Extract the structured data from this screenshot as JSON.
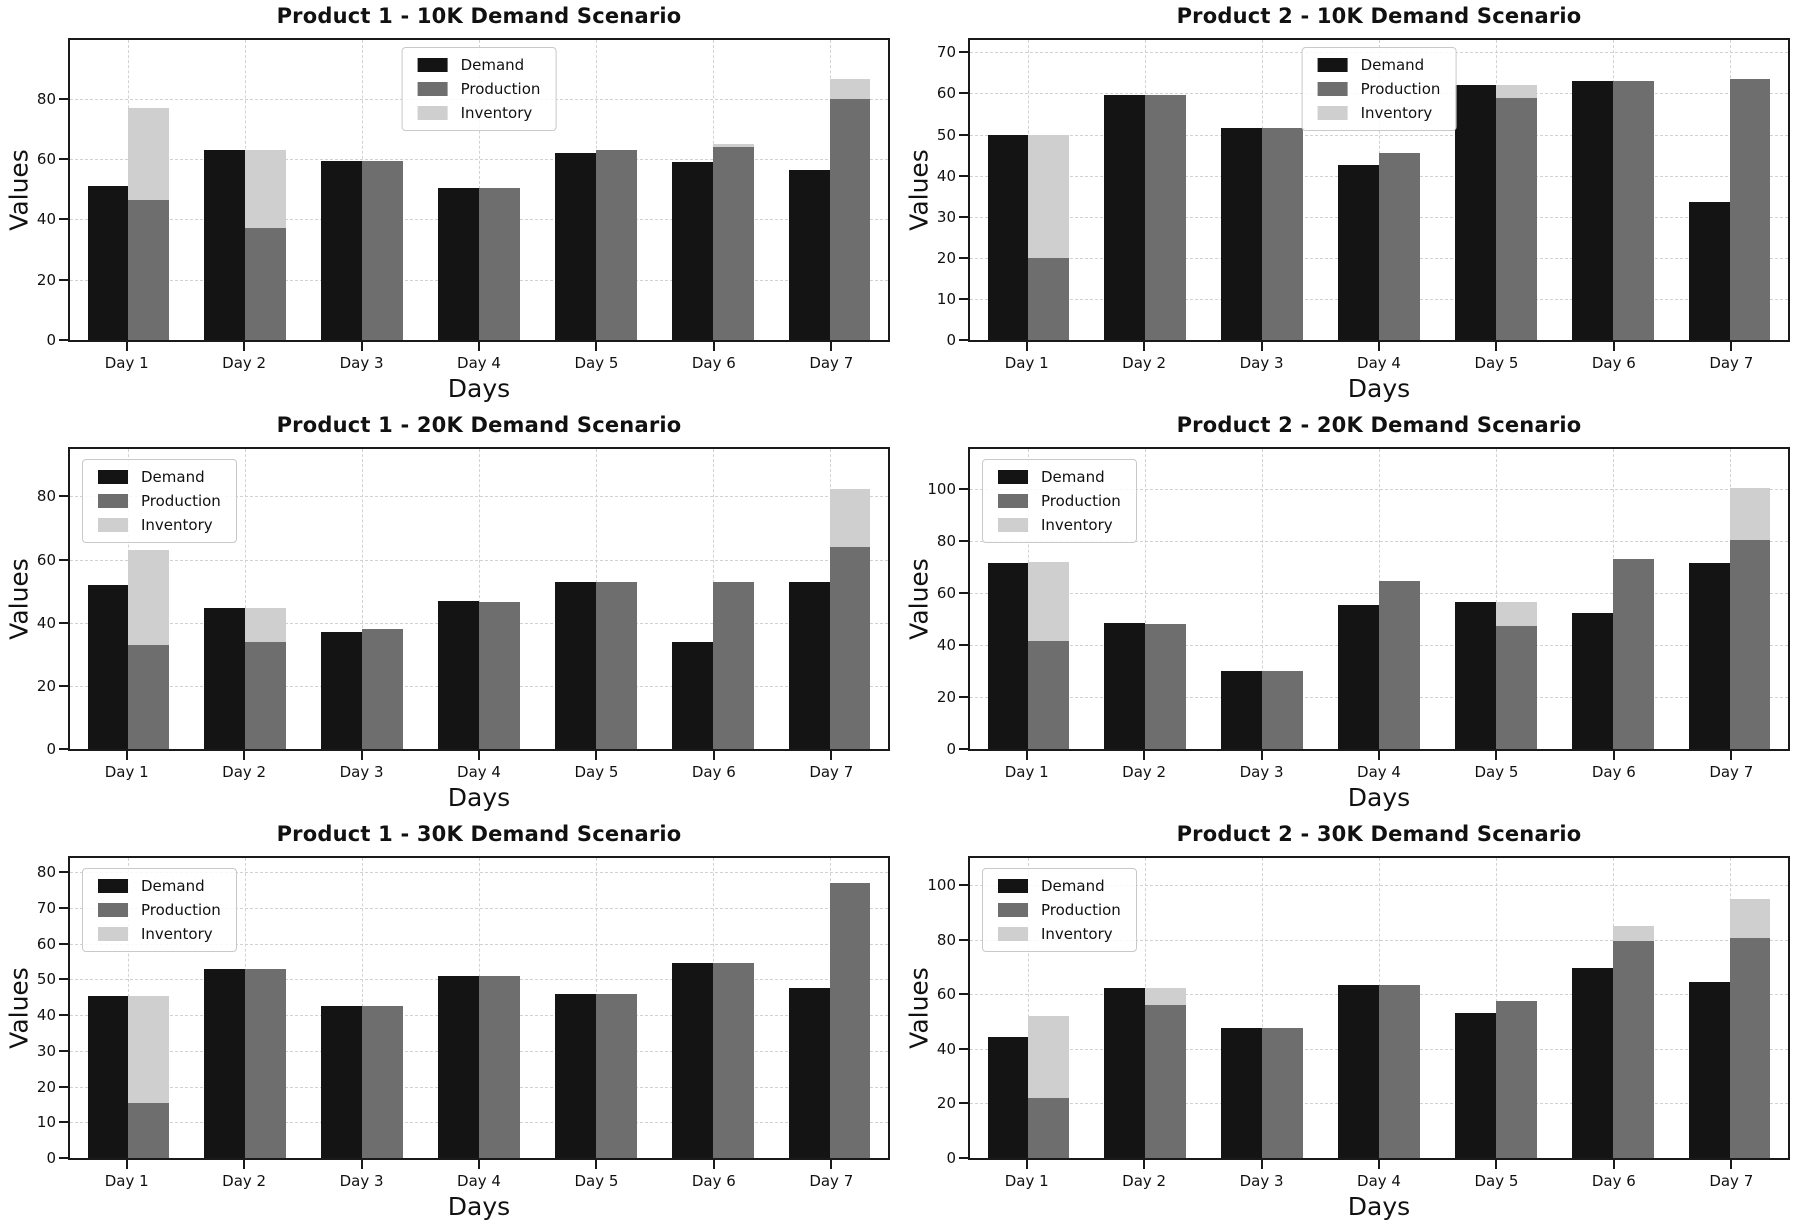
{
  "figure": {
    "background": "#ffffff",
    "grid_on": true,
    "grid_style": "dashed"
  },
  "colors": {
    "demand": "#141414",
    "production": "#6e6e6e",
    "inventory": "#cfcfcf",
    "grid": "#d2d2d2",
    "axis": "#1a1a1a",
    "legend_border": "#c9c9c9"
  },
  "axis_labels": {
    "x": "Days",
    "y": "Values"
  },
  "legend_labels": [
    "Demand",
    "Production",
    "Inventory"
  ],
  "chart_data": [
    {
      "type": "bar",
      "title": "Product 1 - 10K Demand Scenario",
      "xlabel": "Days",
      "ylabel": "Values",
      "categories": [
        "Day 1",
        "Day 2",
        "Day 3",
        "Day 4",
        "Day 5",
        "Day 6",
        "Day 7"
      ],
      "ylim": [
        0,
        99.5
      ],
      "yticks": [
        0,
        20,
        40,
        60,
        80
      ],
      "grid": true,
      "legend_position": "upper-center",
      "series": [
        {
          "name": "Demand",
          "color": "#141414",
          "values": [
            51,
            63,
            59.5,
            50.5,
            62,
            59,
            56.5
          ]
        },
        {
          "name": "Production",
          "color": "#6e6e6e",
          "values": [
            46.5,
            37,
            59.5,
            50.5,
            63,
            64,
            80
          ]
        },
        {
          "name": "Inventory",
          "color": "#cfcfcf",
          "stacked_on": "Production",
          "values": [
            30.5,
            26,
            0,
            0,
            0,
            1,
            6.5
          ]
        }
      ]
    },
    {
      "type": "bar",
      "title": "Product 2 - 10K Demand Scenario",
      "xlabel": "Days",
      "ylabel": "Values",
      "categories": [
        "Day 1",
        "Day 2",
        "Day 3",
        "Day 4",
        "Day 5",
        "Day 6",
        "Day 7"
      ],
      "ylim": [
        0,
        73
      ],
      "yticks": [
        0,
        10,
        20,
        30,
        40,
        50,
        60,
        70
      ],
      "grid": true,
      "legend_position": "upper-center",
      "series": [
        {
          "name": "Demand",
          "color": "#141414",
          "values": [
            50,
            59.5,
            51.5,
            42.5,
            62,
            63,
            33.5
          ]
        },
        {
          "name": "Production",
          "color": "#6e6e6e",
          "values": [
            20,
            59.5,
            51.5,
            45.5,
            59,
            63,
            63.5
          ]
        },
        {
          "name": "Inventory",
          "color": "#cfcfcf",
          "stacked_on": "Production",
          "values": [
            30,
            0,
            0,
            0,
            3,
            0,
            0
          ]
        }
      ]
    },
    {
      "type": "bar",
      "title": "Product 1 - 20K Demand Scenario",
      "xlabel": "Days",
      "ylabel": "Values",
      "categories": [
        "Day 1",
        "Day 2",
        "Day 3",
        "Day 4",
        "Day 5",
        "Day 6",
        "Day 7"
      ],
      "ylim": [
        0,
        95
      ],
      "yticks": [
        0,
        20,
        40,
        60,
        80
      ],
      "grid": true,
      "legend_position": "upper-left",
      "series": [
        {
          "name": "Demand",
          "color": "#141414",
          "values": [
            52,
            44.5,
            37,
            47,
            53,
            34,
            53
          ]
        },
        {
          "name": "Production",
          "color": "#6e6e6e",
          "values": [
            33,
            34,
            38,
            46.5,
            53,
            53,
            64
          ]
        },
        {
          "name": "Inventory",
          "color": "#cfcfcf",
          "stacked_on": "Production",
          "values": [
            30,
            10.5,
            0,
            0,
            0,
            0,
            18.5
          ]
        }
      ]
    },
    {
      "type": "bar",
      "title": "Product 2 - 20K Demand Scenario",
      "xlabel": "Days",
      "ylabel": "Values",
      "categories": [
        "Day 1",
        "Day 2",
        "Day 3",
        "Day 4",
        "Day 5",
        "Day 6",
        "Day 7"
      ],
      "ylim": [
        0,
        115.5
      ],
      "yticks": [
        0,
        20,
        40,
        60,
        80,
        100
      ],
      "grid": true,
      "legend_position": "upper-left",
      "series": [
        {
          "name": "Demand",
          "color": "#141414",
          "values": [
            71.5,
            48.5,
            30,
            55.5,
            56.5,
            52.5,
            71.5
          ]
        },
        {
          "name": "Production",
          "color": "#6e6e6e",
          "values": [
            41.5,
            48,
            30,
            64.5,
            47.5,
            73,
            80.5
          ]
        },
        {
          "name": "Inventory",
          "color": "#cfcfcf",
          "stacked_on": "Production",
          "values": [
            30.5,
            0,
            0,
            0,
            9,
            0,
            20
          ]
        }
      ]
    },
    {
      "type": "bar",
      "title": "Product 1 - 30K Demand Scenario",
      "xlabel": "Days",
      "ylabel": "Values",
      "categories": [
        "Day 1",
        "Day 2",
        "Day 3",
        "Day 4",
        "Day 5",
        "Day 6",
        "Day 7"
      ],
      "ylim": [
        0,
        84
      ],
      "yticks": [
        0,
        10,
        20,
        30,
        40,
        50,
        60,
        70,
        80
      ],
      "grid": true,
      "legend_position": "upper-left",
      "series": [
        {
          "name": "Demand",
          "color": "#141414",
          "values": [
            45.5,
            53,
            42.5,
            51,
            46,
            54.5,
            47.5
          ]
        },
        {
          "name": "Production",
          "color": "#6e6e6e",
          "values": [
            15.5,
            53,
            42.5,
            51,
            46,
            54.5,
            77
          ]
        },
        {
          "name": "Inventory",
          "color": "#cfcfcf",
          "stacked_on": "Production",
          "values": [
            30,
            0,
            0,
            0,
            0,
            0,
            0
          ]
        }
      ]
    },
    {
      "type": "bar",
      "title": "Product 2 - 30K Demand Scenario",
      "xlabel": "Days",
      "ylabel": "Values",
      "categories": [
        "Day 1",
        "Day 2",
        "Day 3",
        "Day 4",
        "Day 5",
        "Day 6",
        "Day 7"
      ],
      "ylim": [
        0,
        110
      ],
      "yticks": [
        0,
        20,
        40,
        60,
        80,
        100
      ],
      "grid": true,
      "legend_position": "upper-left",
      "series": [
        {
          "name": "Demand",
          "color": "#141414",
          "values": [
            44.5,
            62.5,
            47.5,
            63.5,
            53,
            69.5,
            64.5
          ]
        },
        {
          "name": "Production",
          "color": "#6e6e6e",
          "values": [
            22,
            56,
            47.5,
            63.5,
            57.5,
            79.5,
            80.5
          ]
        },
        {
          "name": "Inventory",
          "color": "#cfcfcf",
          "stacked_on": "Production",
          "values": [
            30,
            6.5,
            0,
            0,
            0,
            5.5,
            14.5
          ]
        }
      ]
    }
  ]
}
